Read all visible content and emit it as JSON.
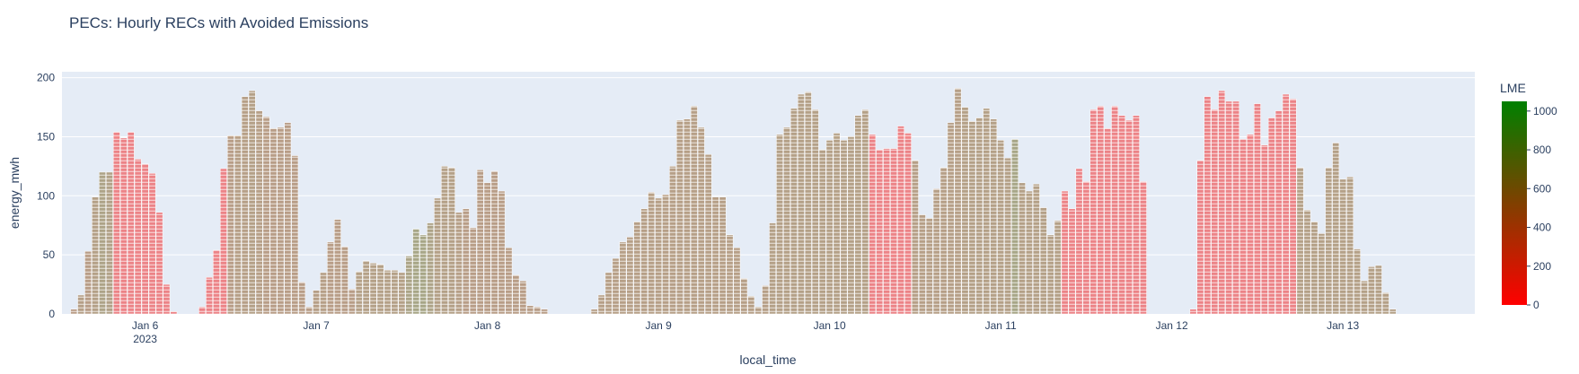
{
  "chart_data": {
    "type": "bar",
    "title": "PECs: Hourly RECs with Avoided Emissions",
    "xlabel": "local_time",
    "ylabel": "energy_mwh",
    "ylim": [
      0,
      205
    ],
    "yticks": [
      0,
      50,
      100,
      150,
      200
    ],
    "xrange": [
      "2023-01-05 12:20",
      "2023-01-13 18:30"
    ],
    "xticks": [
      {
        "date": "2023-01-06 00:00",
        "label": "Jan 6",
        "sublabel": "2023"
      },
      {
        "date": "2023-01-07 00:00",
        "label": "Jan 7",
        "sublabel": ""
      },
      {
        "date": "2023-01-08 00:00",
        "label": "Jan 8",
        "sublabel": ""
      },
      {
        "date": "2023-01-09 00:00",
        "label": "Jan 9",
        "sublabel": ""
      },
      {
        "date": "2023-01-10 00:00",
        "label": "Jan 10",
        "sublabel": ""
      },
      {
        "date": "2023-01-11 00:00",
        "label": "Jan 11",
        "sublabel": ""
      },
      {
        "date": "2023-01-12 00:00",
        "label": "Jan 12",
        "sublabel": ""
      },
      {
        "date": "2023-01-13 00:00",
        "label": "Jan 13",
        "sublabel": ""
      }
    ],
    "grid": true,
    "hourly_start": "2023-01-05 14:00",
    "bar_pattern": "horizontal-stripes",
    "colorbar": {
      "title": "LME",
      "min": 0,
      "max": 1050,
      "ticks": [
        0,
        200,
        400,
        600,
        800,
        1000
      ],
      "color_low": "#ff0000",
      "color_high": "#008000"
    },
    "colors": {
      "plot_bg": "#e5ecf6",
      "grid": "#ffffff",
      "text": "#2a3f5f",
      "bar_outline": "#ffffff"
    },
    "values": [
      4,
      16,
      53,
      99,
      120,
      120,
      154,
      149,
      154,
      131,
      127,
      119,
      86,
      25,
      2,
      0,
      0,
      0,
      6,
      31,
      54,
      123,
      151,
      151,
      184,
      189,
      172,
      167,
      157,
      158,
      162,
      134,
      27,
      6,
      20,
      35,
      61,
      80,
      57,
      21,
      36,
      45,
      43,
      42,
      37,
      37,
      35,
      49,
      72,
      67,
      77,
      98,
      125,
      124,
      86,
      89,
      73,
      122,
      111,
      121,
      104,
      56,
      33,
      28,
      7,
      6,
      4,
      0,
      0,
      0,
      0,
      0,
      0,
      4,
      16,
      35,
      47,
      61,
      65,
      78,
      89,
      103,
      98,
      101,
      125,
      164,
      165,
      176,
      158,
      135,
      99,
      99,
      67,
      56,
      30,
      15,
      6,
      24,
      77,
      152,
      158,
      174,
      186,
      188,
      173,
      139,
      147,
      153,
      147,
      150,
      168,
      173,
      152,
      139,
      140,
      140,
      159,
      153,
      130,
      84,
      81,
      106,
      124,
      162,
      191,
      175,
      163,
      166,
      174,
      165,
      147,
      132,
      148,
      111,
      104,
      110,
      90,
      67,
      79,
      104,
      89,
      123,
      112,
      173,
      176,
      157,
      176,
      168,
      164,
      168,
      112,
      0,
      0,
      0,
      0,
      0,
      0,
      4,
      130,
      184,
      173,
      189,
      180,
      180,
      148,
      152,
      178,
      143,
      166,
      172,
      186,
      182,
      124,
      88,
      78,
      68,
      124,
      145,
      114,
      116,
      55,
      28,
      40,
      41,
      18,
      4
    ],
    "lme": [
      500,
      550,
      520,
      560,
      620,
      580,
      40,
      40,
      40,
      40,
      40,
      40,
      40,
      40,
      40,
      40,
      40,
      40,
      40,
      40,
      40,
      40,
      520,
      540,
      540,
      560,
      540,
      520,
      520,
      520,
      520,
      520,
      520,
      520,
      540,
      540,
      520,
      520,
      520,
      520,
      560,
      560,
      560,
      560,
      560,
      560,
      560,
      640,
      680,
      680,
      620,
      560,
      560,
      560,
      540,
      520,
      520,
      520,
      520,
      520,
      520,
      520,
      520,
      520,
      520,
      520,
      520,
      520,
      520,
      520,
      520,
      520,
      520,
      540,
      540,
      540,
      540,
      540,
      540,
      540,
      540,
      540,
      540,
      540,
      540,
      540,
      540,
      540,
      540,
      540,
      540,
      540,
      540,
      540,
      540,
      540,
      540,
      540,
      560,
      560,
      560,
      560,
      560,
      560,
      560,
      560,
      560,
      560,
      560,
      560,
      560,
      560,
      40,
      40,
      40,
      40,
      40,
      40,
      540,
      540,
      540,
      540,
      540,
      540,
      540,
      560,
      560,
      560,
      560,
      560,
      560,
      560,
      680,
      560,
      560,
      560,
      560,
      560,
      560,
      40,
      40,
      40,
      40,
      40,
      40,
      40,
      40,
      40,
      40,
      40,
      40,
      40,
      40,
      40,
      40,
      40,
      40,
      40,
      40,
      40,
      40,
      40,
      40,
      40,
      40,
      40,
      40,
      40,
      40,
      40,
      40,
      40,
      560,
      560,
      560,
      560,
      560,
      560,
      560,
      560,
      560,
      560,
      560,
      560,
      560,
      560
    ]
  }
}
